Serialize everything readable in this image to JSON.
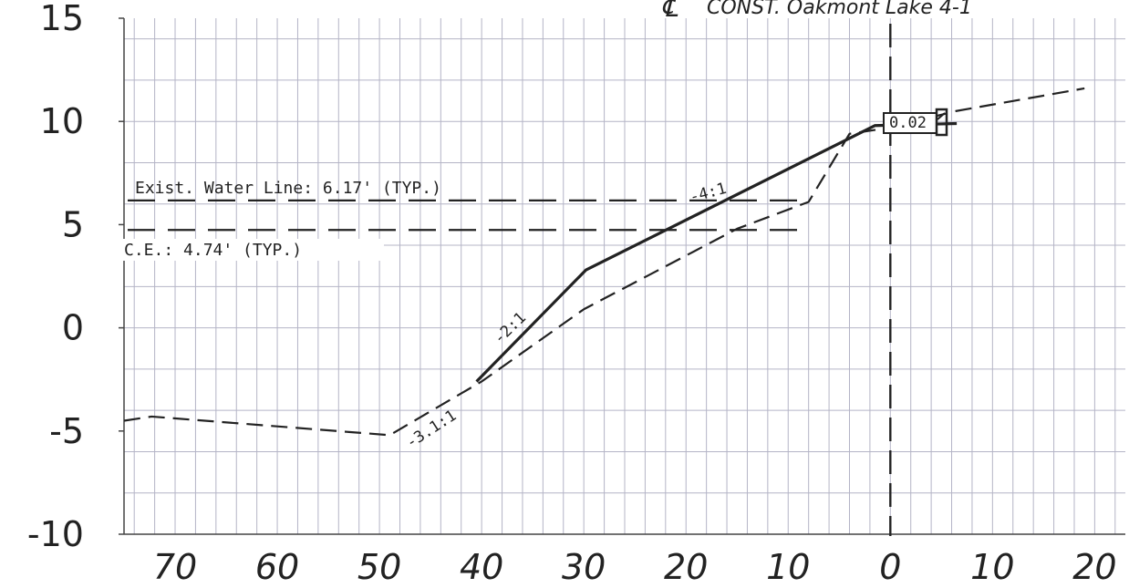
{
  "chart_data": {
    "type": "line",
    "title": "CONST. Oakmont Lake 4-1",
    "centerline_symbol": "℄",
    "xlabel": "",
    "ylabel": "",
    "xlim": [
      -75,
      23
    ],
    "ylim": [
      -10,
      15
    ],
    "x_ticks": [
      {
        "value": -70,
        "label": "70"
      },
      {
        "value": -60,
        "label": "60"
      },
      {
        "value": -50,
        "label": "50"
      },
      {
        "value": -40,
        "label": "40"
      },
      {
        "value": -30,
        "label": "30"
      },
      {
        "value": -20,
        "label": "20"
      },
      {
        "value": -10,
        "label": "10"
      },
      {
        "value": 0,
        "label": "0"
      },
      {
        "value": 10,
        "label": "10"
      },
      {
        "value": 20,
        "label": "20"
      }
    ],
    "y_ticks": [
      {
        "value": 15,
        "label": "15"
      },
      {
        "value": 10,
        "label": "10"
      },
      {
        "value": 5,
        "label": "5"
      },
      {
        "value": 0,
        "label": "0"
      },
      {
        "value": -5,
        "label": "-5"
      },
      {
        "value": -10,
        "label": "-10"
      }
    ],
    "grid": true,
    "grid_spacing": 2,
    "colors": {
      "line": "#222222",
      "grid": "#b4b4c6",
      "axis": "#444444"
    },
    "series": [
      {
        "style": "dashed",
        "points": [
          [
            -75,
            -4.5
          ],
          [
            -72.3,
            -4.3
          ],
          [
            -49,
            -5.2
          ],
          [
            -40,
            -2.6
          ],
          [
            -30,
            0.9
          ],
          [
            -15,
            4.8
          ],
          [
            -8,
            6.1
          ],
          [
            -4,
            9.4
          ],
          [
            0,
            9.7
          ],
          [
            6.4,
            10.5
          ],
          [
            19,
            11.6
          ]
        ]
      },
      {
        "style": "solid",
        "points": [
          [
            -40.5,
            -2.6
          ],
          [
            -29.8,
            2.8
          ],
          [
            -1.5,
            9.8
          ],
          [
            6.5,
            9.9
          ]
        ]
      }
    ],
    "reference_lines": [
      {
        "y": 6.17,
        "style": "long-dash",
        "label": "Exist. Water Line: 6.17' (TYP.)"
      },
      {
        "y": 4.74,
        "style": "long-dash",
        "label": "C.E.: 4.74' (TYP.)"
      },
      {
        "x": 0,
        "style": "long-dash",
        "label": ""
      }
    ],
    "annotations": [
      "-4:1",
      "-2:1",
      "-3.1:1",
      "0.02"
    ]
  }
}
